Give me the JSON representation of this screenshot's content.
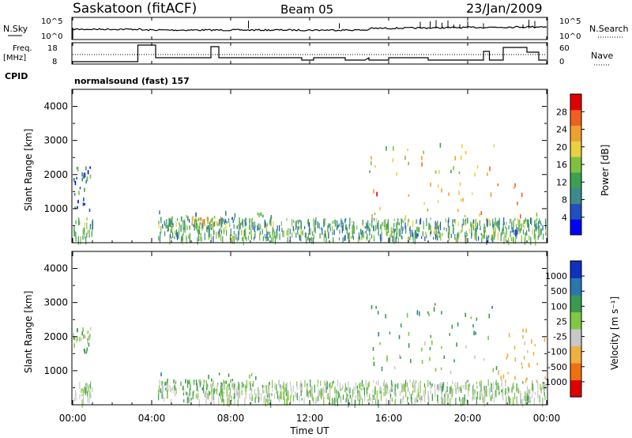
{
  "header": {
    "station": "Saskatoon (fitACF)",
    "beam": "Beam 05",
    "date": "23/Jan/2009"
  },
  "noise_panel": {
    "left_label": "N.Sky",
    "right_label": "N.Search",
    "left_ticks": [
      "10^5",
      "10^0"
    ],
    "right_ticks": [
      "10^5",
      "10^0"
    ]
  },
  "freq_panel": {
    "left_label_1": "Freq.",
    "left_label_2": "[MHz]",
    "right_label": "Nave",
    "left_ticks": [
      "18",
      "8"
    ],
    "right_ticks": [
      "60",
      "0"
    ]
  },
  "cpid": {
    "label": "CPID",
    "text": "normalsound (fast) 157"
  },
  "power_panel": {
    "ylabel": "Slant Range [km]",
    "yticks": [
      "4000",
      "3000",
      "2000",
      "1000"
    ],
    "colorbar_label": "Power [dB]",
    "colorbar_ticks": [
      "28",
      "24",
      "20",
      "16",
      "12",
      "8",
      "4"
    ]
  },
  "velocity_panel": {
    "ylabel": "Slant Range [km]",
    "yticks": [
      "4000",
      "3000",
      "2000",
      "1000"
    ],
    "colorbar_label": "Velocity [m s⁻¹]",
    "colorbar_ticks": [
      "1000",
      "500",
      "100",
      "25",
      "-25",
      "-100",
      "-500",
      "-1000"
    ]
  },
  "xaxis": {
    "label": "Time UT",
    "ticks": [
      "00:00",
      "04:00",
      "08:00",
      "12:00",
      "16:00",
      "20:00",
      "00:00"
    ]
  },
  "colors": {
    "power_scale": [
      "#0000ff",
      "#2050c0",
      "#3c8a8a",
      "#3aa050",
      "#80c040",
      "#e8d040",
      "#f0a030",
      "#f06020",
      "#e00000"
    ],
    "velocity_scale": [
      "#1030c0",
      "#2878b0",
      "#3a9a50",
      "#80c840",
      "#c8c8c8",
      "#f0b040",
      "#f07010",
      "#e00000"
    ]
  },
  "chart_data": [
    {
      "type": "heatmap",
      "title": "Power",
      "xlabel": "Time UT",
      "ylabel": "Slant Range [km]",
      "xlim": [
        0,
        24
      ],
      "ylim": [
        0,
        4500
      ],
      "colorbar": {
        "label": "Power [dB]",
        "range": [
          0,
          30
        ]
      },
      "regions": [
        {
          "t": [
            0.0,
            0.9
          ],
          "r": [
            1000,
            2300
          ],
          "level": 8
        },
        {
          "t": [
            4.3,
            10.2
          ],
          "r": [
            500,
            950
          ],
          "level": 10
        },
        {
          "t": [
            6.0,
            7.5
          ],
          "r": [
            600,
            800
          ],
          "level": 20
        },
        {
          "t": [
            15.0,
            21.5
          ],
          "r": [
            2000,
            3000
          ],
          "level": 18
        },
        {
          "t": [
            15.0,
            24.0
          ],
          "r": [
            800,
            1800
          ],
          "level": 22
        }
      ]
    },
    {
      "type": "heatmap",
      "title": "Velocity",
      "xlabel": "Time UT",
      "ylabel": "Slant Range [km]",
      "xlim": [
        0,
        24
      ],
      "ylim": [
        0,
        4500
      ],
      "colorbar": {
        "label": "Velocity [m s⁻¹]",
        "range": [
          -1000,
          1000
        ]
      },
      "regions": [
        {
          "t": [
            0.0,
            0.9
          ],
          "r": [
            1500,
            2300
          ],
          "level": 0
        },
        {
          "t": [
            4.3,
            10.2
          ],
          "r": [
            500,
            950
          ],
          "level": 50
        },
        {
          "t": [
            15.0,
            21.5
          ],
          "r": [
            2000,
            3000
          ],
          "level": 60
        },
        {
          "t": [
            15.0,
            21.5
          ],
          "r": [
            1000,
            1900
          ],
          "level": 0
        },
        {
          "t": [
            21.5,
            24.0
          ],
          "r": [
            700,
            2300
          ],
          "level": -150
        }
      ]
    }
  ]
}
